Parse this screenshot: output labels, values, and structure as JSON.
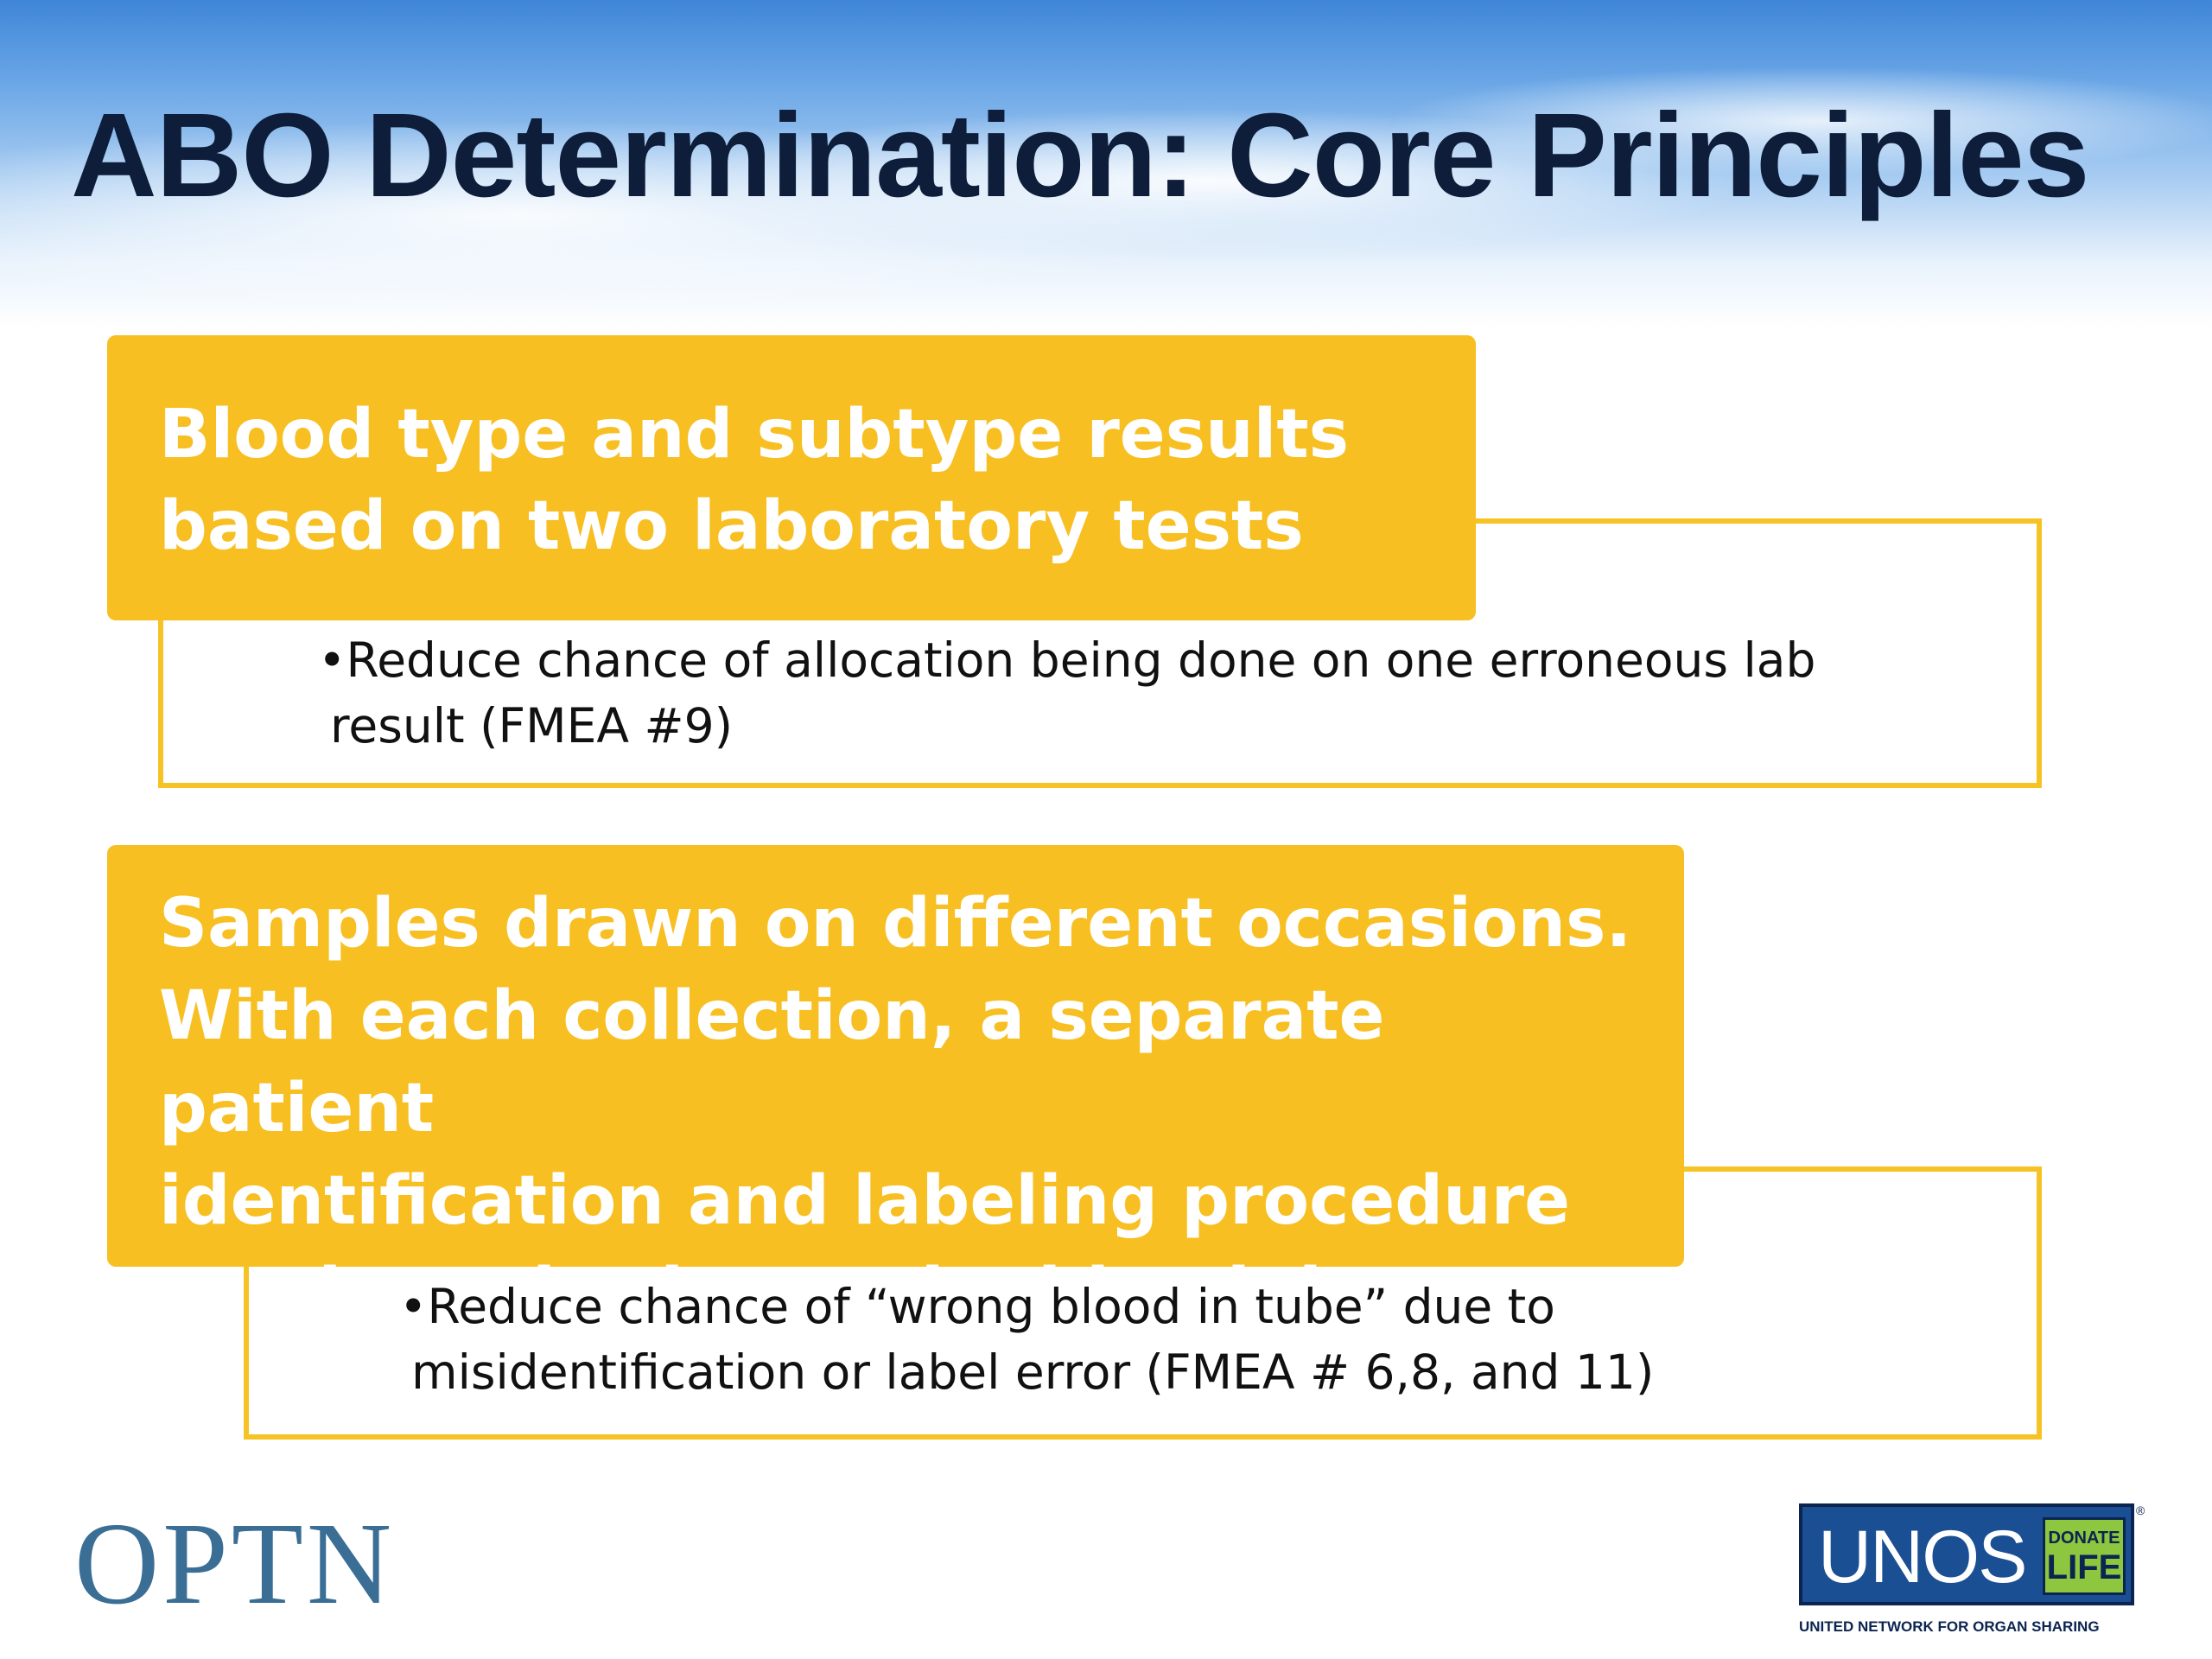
{
  "slide": {
    "title": "ABO Determination: Core Principles"
  },
  "blocks": [
    {
      "heading_line1": "Blood type and subtype results",
      "heading_line2": "based on two laboratory tests",
      "bullet_marker": "•",
      "bullet_line1": "Reduce chance of allocation being done on one erroneous lab",
      "bullet_line2": "result (FMEA #9)"
    },
    {
      "heading_line1": "Samples drawn on different occasions.",
      "heading_line2": "With each collection, a separate patient",
      "heading_line3": "identification and labeling procedure",
      "heading_line4": "conducted prior to the blood draw",
      "bullet_marker": "•",
      "bullet_line1": "Reduce chance of “wrong blood in tube” due to",
      "bullet_line2": "misidentification or label error (FMEA # 6,8, and 11)"
    }
  ],
  "footer": {
    "optn_logo_text": "OPTN",
    "unos_logo_text": "UNOS",
    "donate_top": "DONATE",
    "donate_bottom": "LIFE",
    "registered_mark": "®",
    "unos_tagline": "UNITED NETWORK FOR ORGAN SHARING"
  },
  "colors": {
    "banner": "#f7bf22",
    "outline": "#f6c325",
    "title": "#0d1d3a",
    "optn": "#3b6e95",
    "unos_blue": "#1a4f93",
    "donate_green": "#8dc63f"
  }
}
